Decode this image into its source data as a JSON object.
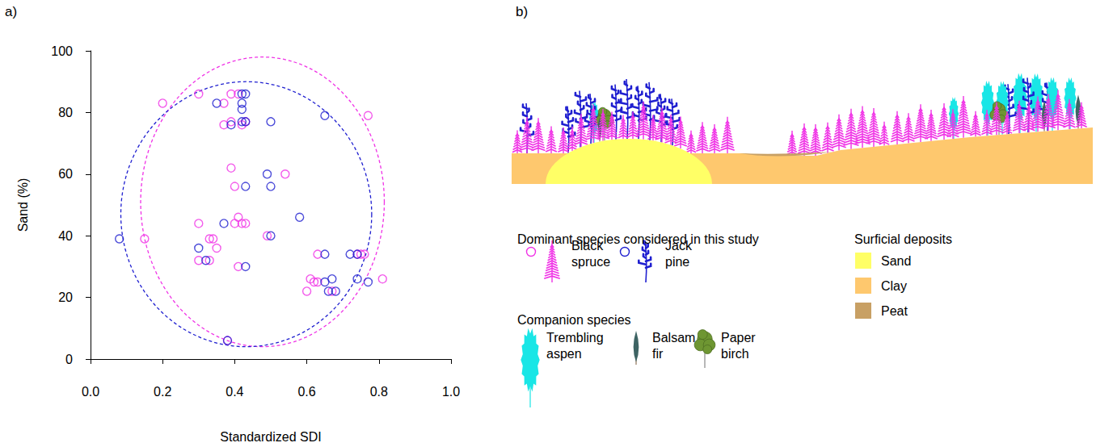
{
  "chart_data": {
    "type": "scatter",
    "panel": "a)",
    "x_label": "Standardized SDI",
    "y_label": "Sand (%)",
    "xlim": [
      0,
      1
    ],
    "xticks": [
      {
        "value": 0,
        "label": "0.0"
      },
      0.2,
      0.4,
      0.6,
      0.8,
      {
        "value": 1,
        "label": "1.0"
      }
    ],
    "ylim": [
      0,
      100
    ],
    "yticks": [
      0,
      20,
      40,
      60,
      80,
      100
    ],
    "grid": false,
    "series": [
      {
        "name": "Black spruce",
        "color": "#f032e6",
        "marker": "open_circle",
        "x": [
          0.2,
          0.3,
          0.37,
          0.37,
          0.39,
          0.39,
          0.41,
          0.42,
          0.43,
          0.77,
          0.39,
          0.4,
          0.54,
          0.41,
          0.42,
          0.4,
          0.43,
          0.3,
          0.15,
          0.33,
          0.34,
          0.35,
          0.3,
          0.33,
          0.49,
          0.41,
          0.63,
          0.74,
          0.75,
          0.76,
          0.61,
          0.62,
          0.63,
          0.6,
          0.67,
          0.81,
          0.38
        ],
        "values": [
          83,
          86,
          83,
          76,
          77,
          86,
          86,
          76,
          77,
          79,
          62,
          56,
          60,
          46,
          44,
          44,
          44,
          44,
          39,
          39,
          39,
          36,
          32,
          32,
          40,
          30,
          34,
          34,
          34,
          34,
          26,
          25,
          25,
          22,
          22,
          26,
          6
        ]
      },
      {
        "name": "Jack pine",
        "color": "#1f1fd0",
        "marker": "open_circle",
        "x": [
          0.35,
          0.42,
          0.43,
          0.42,
          0.42,
          0.42,
          0.43,
          0.39,
          0.5,
          0.65,
          0.49,
          0.5,
          0.43,
          0.58,
          0.37,
          0.5,
          0.08,
          0.3,
          0.32,
          0.43,
          0.65,
          0.72,
          0.74,
          0.67,
          0.74,
          0.65,
          0.66,
          0.68,
          0.77,
          0.38
        ],
        "values": [
          83,
          86,
          86,
          83,
          81,
          77,
          77,
          76,
          77,
          79,
          60,
          56,
          56,
          46,
          44,
          40,
          39,
          36,
          32,
          30,
          34,
          34,
          34,
          26,
          26,
          25,
          22,
          22,
          25,
          6
        ]
      }
    ],
    "ellipses": [
      {
        "series": "Black spruce",
        "color": "#f032e6",
        "line_style": "dashed",
        "center": [
          0.477,
          51
        ],
        "radius": [
          0.338,
          47
        ]
      },
      {
        "series": "Jack pine",
        "color": "#1f1fd0",
        "line_style": "dashed",
        "center": [
          0.432,
          47
        ],
        "radius": [
          0.348,
          43
        ]
      }
    ]
  },
  "diagram": {
    "panel": "b)",
    "legend_groups": [
      {
        "title": "Dominant species considered in this study",
        "items": [
          {
            "label": "Black spruce",
            "color": "#f032e6"
          },
          {
            "label": "Jack pine",
            "color": "#1f1fd0"
          }
        ]
      },
      {
        "title": "Companion species",
        "items": [
          {
            "label": "Trembling aspen",
            "color": "#19e6e6"
          },
          {
            "label": "Balsam fir",
            "color": "#3e6464"
          },
          {
            "label": "Paper birch",
            "color": "#6e9632"
          }
        ]
      },
      {
        "title": "Surficial deposits",
        "items": [
          {
            "label": "Sand",
            "color": "#ffff66"
          },
          {
            "label": "Clay",
            "color": "#fec86e"
          },
          {
            "label": "Peat",
            "color": "#c8a064"
          }
        ]
      }
    ]
  }
}
